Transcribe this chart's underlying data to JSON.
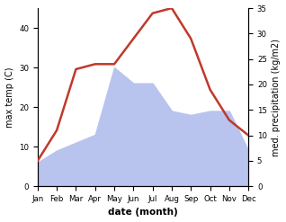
{
  "months": [
    "Jan",
    "Feb",
    "Mar",
    "Apr",
    "May",
    "Jun",
    "Jul",
    "Aug",
    "Sep",
    "Oct",
    "Nov",
    "Dec"
  ],
  "temperature": [
    5,
    11,
    23,
    24,
    24,
    29,
    34,
    35,
    29,
    19,
    13,
    10
  ],
  "precipitation": [
    6,
    9,
    11,
    13,
    30,
    26,
    26,
    19,
    18,
    19,
    19,
    9
  ],
  "temp_color": "#c0392b",
  "precip_fill_color": "#b8c4ee",
  "left_label": "max temp (C)",
  "right_label": "med. precipitation (kg/m2)",
  "xlabel": "date (month)",
  "left_ylim": [
    0,
    45
  ],
  "right_ylim": [
    0,
    35
  ],
  "left_yticks": [
    0,
    10,
    20,
    30,
    40
  ],
  "right_yticks": [
    0,
    5,
    10,
    15,
    20,
    25,
    30,
    35
  ],
  "bg_color": "#ffffff"
}
